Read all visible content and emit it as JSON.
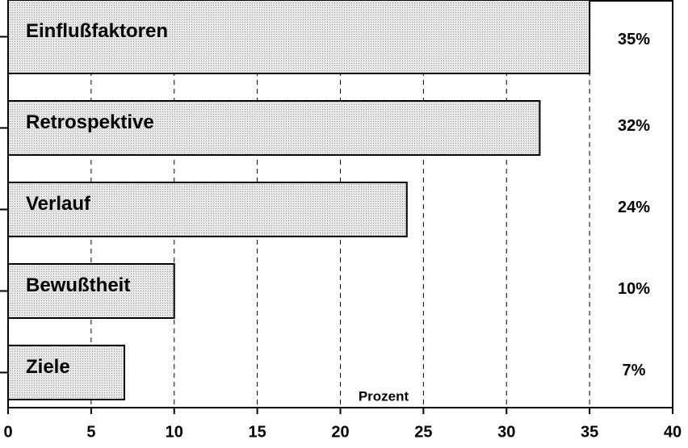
{
  "chart_data": {
    "type": "barh",
    "categories": [
      "Einflußfaktoren",
      "Retrospektive",
      "Verlauf",
      "Bewußtheit",
      "Ziele"
    ],
    "values": [
      35,
      32,
      24,
      10,
      7
    ],
    "value_labels": [
      "35%",
      "32%",
      "24%",
      "10%",
      "7%"
    ],
    "color": "#dcdcdc",
    "x_label": "Prozent",
    "xlim": [
      0,
      40
    ],
    "xticks": [
      0,
      5,
      10,
      15,
      20,
      25,
      30,
      35,
      40
    ],
    "grid": true
  }
}
